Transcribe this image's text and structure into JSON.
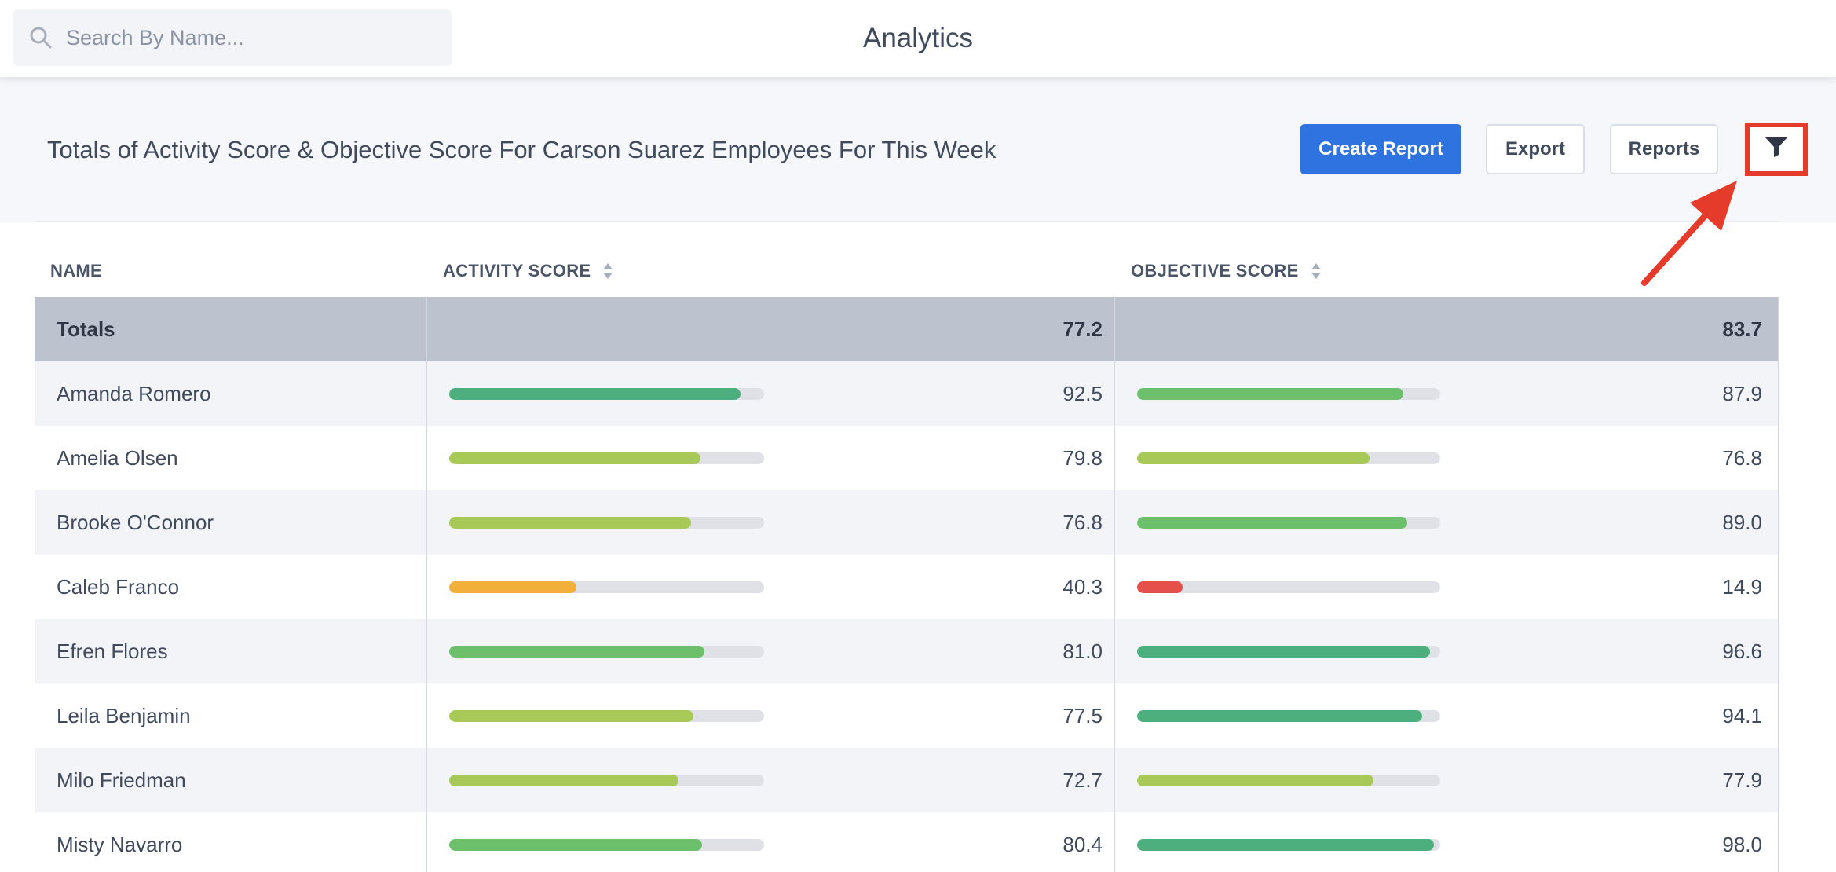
{
  "search": {
    "placeholder": "Search By Name..."
  },
  "app_title": "Analytics",
  "report": {
    "title": "Totals of Activity Score & Objective Score For Carson Suarez Employees For This Week",
    "buttons": {
      "create": "Create Report",
      "export": "Export",
      "reports": "Reports"
    }
  },
  "colors": {
    "primary": "#2f73e0",
    "highlight": "#e53b2a",
    "totals_row": "#bcc2ce"
  },
  "table": {
    "headers": {
      "name": "NAME",
      "activity": "ACTIVITY SCORE",
      "objective": "OBJECTIVE SCORE"
    },
    "totals": {
      "label": "Totals",
      "activity": "77.2",
      "objective": "83.7"
    },
    "rows": [
      {
        "name": "Amanda Romero",
        "activity": "92.5",
        "objective": "87.9",
        "activity_color": "#4caf7d",
        "objective_color": "#6cc06c"
      },
      {
        "name": "Amelia Olsen",
        "activity": "79.8",
        "objective": "76.8",
        "activity_color": "#a8c957",
        "objective_color": "#a8c957"
      },
      {
        "name": "Brooke O'Connor",
        "activity": "76.8",
        "objective": "89.0",
        "activity_color": "#a8c957",
        "objective_color": "#6cc06c"
      },
      {
        "name": "Caleb Franco",
        "activity": "40.3",
        "objective": "14.9",
        "activity_color": "#f0b03a",
        "objective_color": "#e5504a"
      },
      {
        "name": "Efren Flores",
        "activity": "81.0",
        "objective": "96.6",
        "activity_color": "#6cc06c",
        "objective_color": "#4caf7d"
      },
      {
        "name": "Leila Benjamin",
        "activity": "77.5",
        "objective": "94.1",
        "activity_color": "#a8c957",
        "objective_color": "#4caf7d"
      },
      {
        "name": "Milo Friedman",
        "activity": "72.7",
        "objective": "77.9",
        "activity_color": "#a8c957",
        "objective_color": "#a8c957"
      },
      {
        "name": "Misty Navarro",
        "activity": "80.4",
        "objective": "98.0",
        "activity_color": "#6cc06c",
        "objective_color": "#4caf7d"
      }
    ]
  }
}
